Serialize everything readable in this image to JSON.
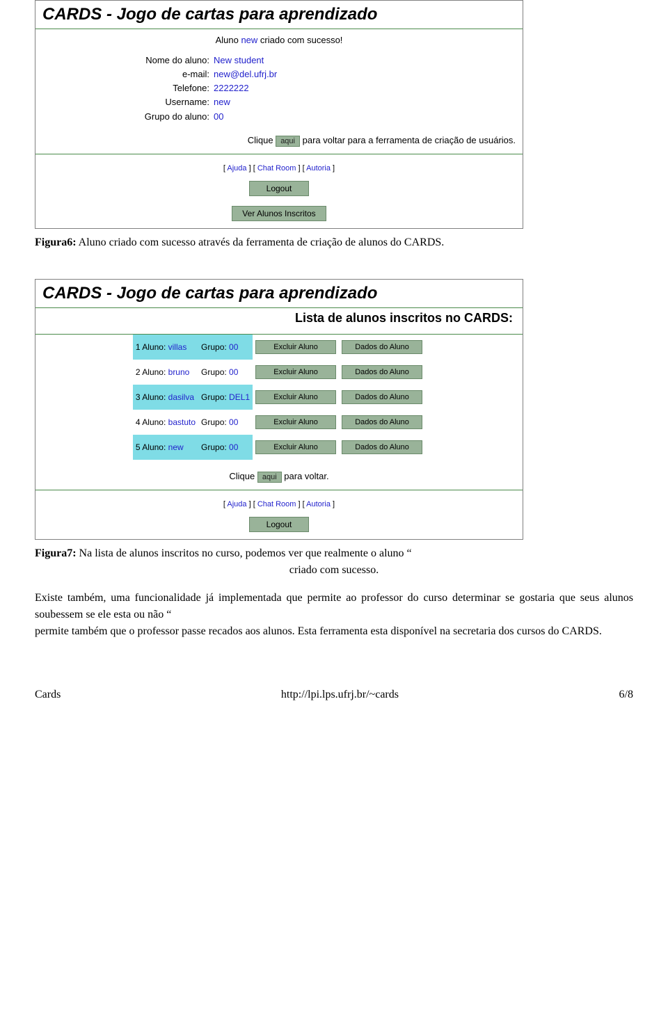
{
  "fig6": {
    "title": "CARDS - Jogo de cartas para aprendizado",
    "success_prefix": "Aluno ",
    "success_link": "new",
    "success_suffix": " criado com sucesso!",
    "details": [
      {
        "label": "Nome do aluno:",
        "value": "New student"
      },
      {
        "label": "e-mail:",
        "value": "new@del.ufrj.br"
      },
      {
        "label": "Telefone:",
        "value": "2222222"
      },
      {
        "label": "Username:",
        "value": "new"
      },
      {
        "label": "Grupo do aluno:",
        "value": "00"
      }
    ],
    "click_prefix": "Clique ",
    "click_btn": "aqui",
    "click_suffix": " para voltar para a ferramenta de criação de usuários.",
    "links": {
      "ajuda": "Ajuda",
      "chat": "Chat Room",
      "autoria": "Autoria"
    },
    "logout": "Logout",
    "ver_alunos": "Ver Alunos Inscritos"
  },
  "caption6_bold": "Figura6:",
  "caption6_rest": " Aluno criado com sucesso através da ferramenta de criação de alunos do CARDS.",
  "fig7": {
    "title": "CARDS - Jogo de cartas para aprendizado",
    "subtitle": "Lista de alunos inscritos no CARDS:",
    "rows": [
      {
        "n": "1",
        "aluno_pref": "Aluno: ",
        "aluno": "villas",
        "grupo_pref": "Grupo: ",
        "grupo": "00",
        "hl": true
      },
      {
        "n": "2",
        "aluno_pref": "Aluno: ",
        "aluno": "bruno",
        "grupo_pref": "Grupo: ",
        "grupo": "00",
        "hl": false
      },
      {
        "n": "3",
        "aluno_pref": "Aluno: ",
        "aluno": "dasilva",
        "grupo_pref": "Grupo: ",
        "grupo": "DEL1",
        "hl": true
      },
      {
        "n": "4",
        "aluno_pref": "Aluno: ",
        "aluno": "bastuto",
        "grupo_pref": "Grupo: ",
        "grupo": "00",
        "hl": false
      },
      {
        "n": "5",
        "aluno_pref": "Aluno: ",
        "aluno": "new",
        "grupo_pref": "Grupo: ",
        "grupo": "00",
        "hl": true
      }
    ],
    "excluir": "Excluir Aluno",
    "dados": "Dados do Aluno",
    "click_prefix": "Clique ",
    "click_btn": "aqui",
    "click_suffix": " para voltar.",
    "links": {
      "ajuda": "Ajuda",
      "chat": "Chat Room",
      "autoria": "Autoria"
    },
    "logout": "Logout"
  },
  "caption7_bold": "Figura7:",
  "caption7_line1": " Na lista de alunos inscritos no curso, podemos ver que realmente o aluno “",
  "caption7_line2": "criado com sucesso.",
  "body_p1": "Existe também, uma funcionalidade já implementada que permite ao professor do curso determinar se gostaria que seus alunos soubessem se ele esta ou não “",
  "body_p2": "permite também que o professor passe recados aos alunos. Esta ferramenta esta disponível na secretaria dos cursos do CARDS.",
  "footer": {
    "left": "Cards",
    "center": "http://lpi.lps.ufrj.br/~cards",
    "right": "6/8"
  }
}
